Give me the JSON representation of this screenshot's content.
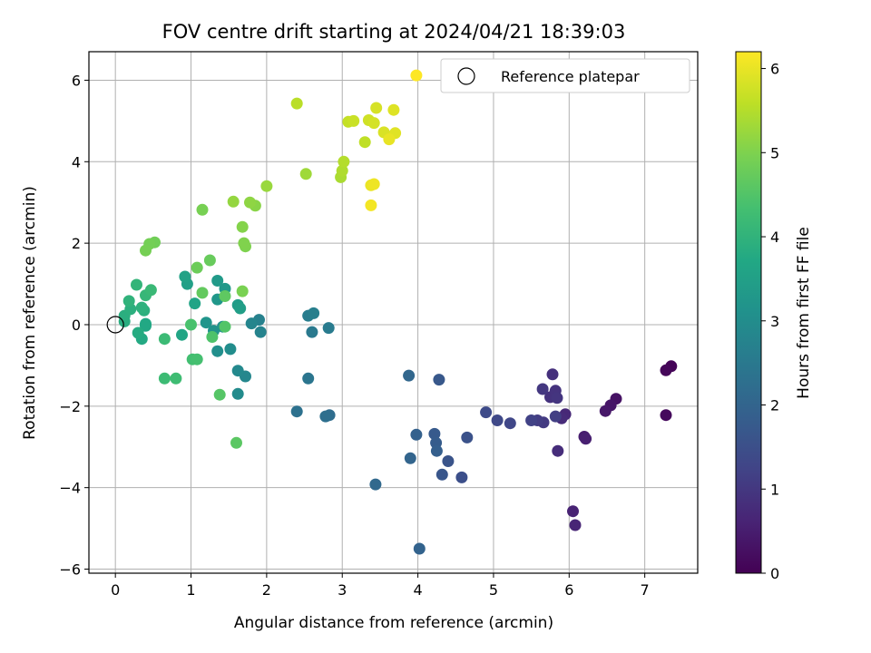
{
  "chart_data": {
    "type": "scatter",
    "title": "FOV centre drift starting at 2024/04/21 18:39:03",
    "xlabel": "Angular distance from reference (arcmin)",
    "ylabel": "Rotation from reference (arcmin)",
    "xlim": [
      -0.35,
      7.7
    ],
    "ylim": [
      -6.1,
      6.7
    ],
    "xticks": [
      0,
      1,
      2,
      3,
      4,
      5,
      6,
      7
    ],
    "yticks": [
      -6,
      -4,
      -2,
      0,
      2,
      4,
      6
    ],
    "grid": true,
    "legend": {
      "placement": "top-right",
      "entries": [
        "Reference platepar"
      ]
    },
    "reference_point": {
      "x": 0,
      "y": 0
    },
    "colorbar": {
      "label": "Hours from first FF file",
      "range": [
        0,
        6.2
      ],
      "ticks": [
        0,
        1,
        2,
        3,
        4,
        5,
        6
      ],
      "colormap": "viridis"
    },
    "points": [
      [
        7.35,
        -1.02,
        0.05
      ],
      [
        7.28,
        -1.12,
        0.1
      ],
      [
        7.28,
        -2.22,
        0.15
      ],
      [
        6.62,
        -1.82,
        0.3
      ],
      [
        6.55,
        -1.98,
        0.35
      ],
      [
        6.48,
        -2.12,
        0.4
      ],
      [
        6.2,
        -2.75,
        0.5
      ],
      [
        6.22,
        -2.8,
        0.55
      ],
      [
        6.05,
        -4.58,
        0.6
      ],
      [
        6.08,
        -4.92,
        0.65
      ],
      [
        5.95,
        -2.2,
        0.7
      ],
      [
        5.9,
        -2.3,
        0.75
      ],
      [
        5.85,
        -3.1,
        0.8
      ],
      [
        5.78,
        -1.22,
        0.85
      ],
      [
        5.75,
        -1.78,
        0.9
      ],
      [
        5.82,
        -1.62,
        0.92
      ],
      [
        5.84,
        -1.8,
        0.95
      ],
      [
        5.65,
        -1.58,
        1.0
      ],
      [
        5.66,
        -2.4,
        1.05
      ],
      [
        5.58,
        -2.35,
        1.1
      ],
      [
        5.82,
        -2.25,
        1.15
      ],
      [
        5.5,
        -2.35,
        1.2
      ],
      [
        5.22,
        -2.42,
        1.3
      ],
      [
        5.05,
        -2.35,
        1.35
      ],
      [
        4.9,
        -2.15,
        1.4
      ],
      [
        4.58,
        -3.75,
        1.5
      ],
      [
        4.65,
        -2.77,
        1.55
      ],
      [
        4.4,
        -3.35,
        1.6
      ],
      [
        4.32,
        -3.68,
        1.65
      ],
      [
        4.28,
        -1.35,
        1.7
      ],
      [
        4.22,
        -2.68,
        1.75
      ],
      [
        4.24,
        -2.9,
        1.8
      ],
      [
        4.25,
        -3.1,
        1.85
      ],
      [
        3.98,
        -2.7,
        1.9
      ],
      [
        4.02,
        -5.5,
        1.95
      ],
      [
        3.9,
        -3.28,
        2.0
      ],
      [
        3.88,
        -1.25,
        2.05
      ],
      [
        3.44,
        -3.92,
        2.1
      ],
      [
        2.83,
        -2.22,
        2.2
      ],
      [
        2.78,
        -2.25,
        2.25
      ],
      [
        2.4,
        -2.13,
        2.3
      ],
      [
        2.55,
        -1.32,
        2.4
      ],
      [
        2.6,
        -0.18,
        2.5
      ],
      [
        2.82,
        -0.08,
        2.55
      ],
      [
        2.55,
        0.22,
        2.6
      ],
      [
        2.62,
        0.28,
        2.65
      ],
      [
        1.9,
        0.12,
        2.7
      ],
      [
        1.92,
        -0.18,
        2.75
      ],
      [
        1.8,
        0.03,
        2.8
      ],
      [
        1.72,
        -1.27,
        2.85
      ],
      [
        1.62,
        -1.13,
        2.9
      ],
      [
        1.62,
        -1.7,
        2.95
      ],
      [
        1.52,
        -0.6,
        3.0
      ],
      [
        1.35,
        -0.65,
        3.05
      ],
      [
        1.42,
        -0.05,
        3.1
      ],
      [
        1.3,
        -0.15,
        3.15
      ],
      [
        1.2,
        0.05,
        3.2
      ],
      [
        1.35,
        0.62,
        3.25
      ],
      [
        1.45,
        0.88,
        3.3
      ],
      [
        1.35,
        1.08,
        3.35
      ],
      [
        1.62,
        0.48,
        3.4
      ],
      [
        1.65,
        0.4,
        3.45
      ],
      [
        0.95,
        1.0,
        3.5
      ],
      [
        0.92,
        1.18,
        3.55
      ],
      [
        1.05,
        0.52,
        3.6
      ],
      [
        0.88,
        -0.25,
        3.65
      ],
      [
        0.4,
        -0.03,
        3.7
      ],
      [
        0.4,
        0.02,
        3.72
      ],
      [
        0.35,
        -0.35,
        3.75
      ],
      [
        0.3,
        -0.2,
        3.8
      ],
      [
        0.12,
        0.08,
        3.85
      ],
      [
        0.12,
        0.22,
        3.88
      ],
      [
        0.2,
        0.38,
        3.9
      ],
      [
        0.38,
        0.35,
        3.92
      ],
      [
        0.35,
        0.42,
        3.95
      ],
      [
        0.18,
        0.58,
        4.0
      ],
      [
        0.28,
        0.98,
        4.05
      ],
      [
        0.4,
        0.72,
        4.1
      ],
      [
        0.47,
        0.85,
        4.15
      ],
      [
        0.65,
        -0.35,
        4.2
      ],
      [
        0.65,
        -1.32,
        4.22
      ],
      [
        0.8,
        -1.32,
        4.25
      ],
      [
        1.02,
        -0.85,
        4.3
      ],
      [
        1.08,
        -0.85,
        4.35
      ],
      [
        1.0,
        0.0,
        4.4
      ],
      [
        1.28,
        -0.3,
        4.45
      ],
      [
        1.45,
        -0.05,
        4.5
      ],
      [
        1.38,
        -1.72,
        4.55
      ],
      [
        1.6,
        -2.9,
        4.6
      ],
      [
        1.45,
        0.7,
        4.65
      ],
      [
        1.15,
        0.78,
        4.7
      ],
      [
        1.25,
        1.58,
        4.75
      ],
      [
        1.08,
        1.4,
        4.8
      ],
      [
        0.52,
        2.02,
        4.85
      ],
      [
        0.45,
        1.98,
        4.88
      ],
      [
        0.4,
        1.82,
        4.9
      ],
      [
        1.15,
        2.82,
        4.92
      ],
      [
        1.68,
        0.82,
        4.95
      ],
      [
        1.72,
        1.92,
        5.0
      ],
      [
        1.7,
        2.0,
        5.02
      ],
      [
        1.68,
        2.4,
        5.05
      ],
      [
        1.85,
        2.92,
        5.1
      ],
      [
        1.78,
        3.0,
        5.15
      ],
      [
        1.56,
        3.02,
        5.2
      ],
      [
        2.0,
        3.4,
        5.25
      ],
      [
        2.52,
        3.7,
        5.3
      ],
      [
        2.98,
        3.62,
        5.4
      ],
      [
        3.0,
        3.78,
        5.45
      ],
      [
        3.02,
        4.0,
        5.5
      ],
      [
        2.4,
        5.43,
        5.55
      ],
      [
        3.3,
        4.48,
        5.6
      ],
      [
        3.08,
        4.98,
        5.65
      ],
      [
        3.15,
        5.0,
        5.7
      ],
      [
        3.35,
        5.02,
        5.75
      ],
      [
        3.42,
        4.95,
        5.8
      ],
      [
        3.45,
        5.32,
        5.82
      ],
      [
        3.55,
        4.72,
        5.85
      ],
      [
        3.68,
        5.27,
        5.9
      ],
      [
        3.7,
        4.7,
        5.92
      ],
      [
        3.62,
        4.55,
        6.0
      ],
      [
        3.38,
        3.42,
        6.02
      ],
      [
        3.42,
        3.45,
        6.05
      ],
      [
        3.38,
        2.93,
        6.1
      ],
      [
        3.98,
        6.12,
        6.2
      ]
    ]
  }
}
